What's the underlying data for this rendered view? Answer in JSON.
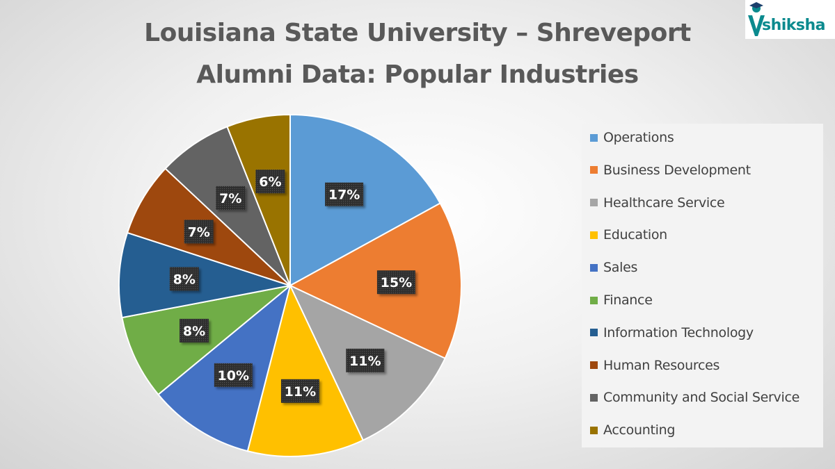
{
  "title_line1": "Louisiana State University – Shreveport",
  "title_line2": "Alumni Data: Popular Industries",
  "brand": {
    "name": "shiksha",
    "color": "#0b8a8e"
  },
  "chart_data": {
    "type": "pie",
    "title": "Louisiana State University – Shreveport Alumni Data: Popular Industries",
    "legend_position": "right",
    "categories": [
      "Operations",
      "Business Development",
      "Healthcare Service",
      "Education",
      "Sales",
      "Finance",
      "Information Technology",
      "Human Resources",
      "Community and Social Service",
      "Accounting"
    ],
    "values": [
      17,
      15,
      11,
      11,
      10,
      8,
      8,
      7,
      7,
      6
    ],
    "labels": [
      "17%",
      "15%",
      "11%",
      "11%",
      "10%",
      "8%",
      "8%",
      "7%",
      "7%",
      "6%"
    ],
    "colors": [
      "#5b9bd5",
      "#ed7d31",
      "#a5a5a5",
      "#ffc000",
      "#4472c4",
      "#70ad47",
      "#255e91",
      "#9e480e",
      "#636363",
      "#997300"
    ]
  }
}
